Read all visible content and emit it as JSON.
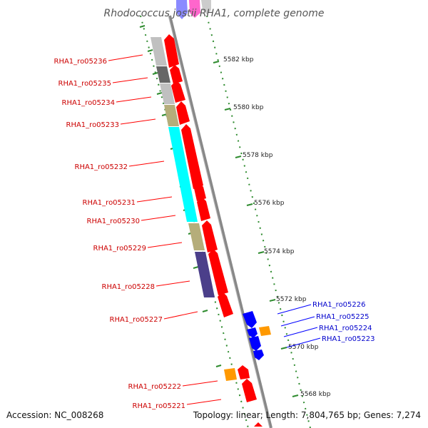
{
  "title": "Rhodococcus jostii RHA1, complete genome",
  "footer": {
    "accession": "Accession: NC_008268",
    "summary": "Topology: linear; Length: 7,804,765 bp; Genes: 7,274"
  },
  "colors": {
    "forward_arrow": "#ff0000",
    "reverse_arrow": "#0000ff",
    "orange_box": "#ff9900",
    "backbone": "#888888",
    "dotted_track": "#2e8b2e",
    "forward_label": "#cc0000",
    "reverse_label": "#0000cc"
  },
  "scale_ticks": [
    {
      "label": "5582 kbp"
    },
    {
      "label": "5580 kbp"
    },
    {
      "label": "5578 kbp"
    },
    {
      "label": "5576 kbp"
    },
    {
      "label": "5574 kbp"
    },
    {
      "label": "5572 kbp"
    },
    {
      "label": "5570 kbp"
    },
    {
      "label": "5568 kbp"
    }
  ],
  "genes_forward": [
    {
      "id": "RHA1_ro05236",
      "block_color": "#c0c0c0"
    },
    {
      "id": "RHA1_ro05235",
      "block_color": "#666666"
    },
    {
      "id": "RHA1_ro05234",
      "block_color": "#c0c0c0"
    },
    {
      "id": "RHA1_ro05233",
      "block_color": "#b5ad7a"
    },
    {
      "id": "RHA1_ro05232",
      "block_color": "#00ffff"
    },
    {
      "id": "RHA1_ro05231",
      "block_color": "#00ffff"
    },
    {
      "id": "RHA1_ro05230",
      "block_color": "#00ffff"
    },
    {
      "id": "RHA1_ro05229",
      "block_color": "#b5ad7a"
    },
    {
      "id": "RHA1_ro05228",
      "block_color": "#4b3f8a"
    },
    {
      "id": "RHA1_ro05227",
      "block_color": "#4b3f8a"
    },
    {
      "id": "RHA1_ro05222",
      "block_color": "#ff9900"
    },
    {
      "id": "RHA1_ro05221",
      "block_color": "#ff9900"
    }
  ],
  "genes_reverse": [
    {
      "id": "RHA1_ro05226"
    },
    {
      "id": "RHA1_ro05225"
    },
    {
      "id": "RHA1_ro05224"
    },
    {
      "id": "RHA1_ro05223"
    }
  ]
}
